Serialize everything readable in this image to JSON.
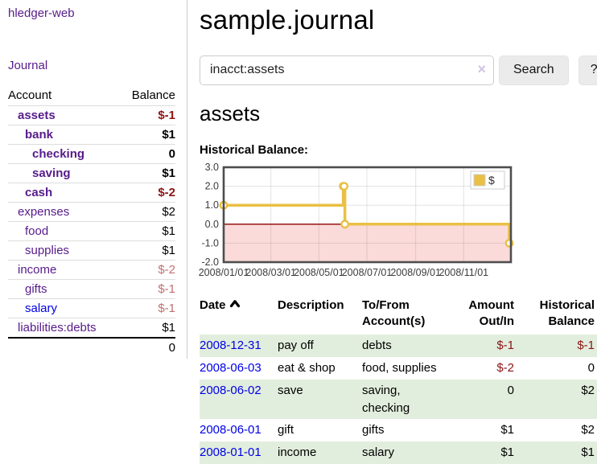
{
  "app": {
    "brand": "hledger-web"
  },
  "sidebar": {
    "journal_link": "Journal",
    "accounts": {
      "header_account": "Account",
      "header_balance": "Balance",
      "rows": [
        {
          "name": "assets",
          "balance": "$-1",
          "indent": 0,
          "bold": true,
          "balance_style": "neg-strong"
        },
        {
          "name": "bank",
          "balance": "$1",
          "indent": 1,
          "bold": true,
          "balance_style": "pos"
        },
        {
          "name": "checking",
          "balance": "0",
          "indent": 2,
          "bold": true,
          "balance_style": "pos"
        },
        {
          "name": "saving",
          "balance": "$1",
          "indent": 2,
          "bold": true,
          "balance_style": "pos"
        },
        {
          "name": "cash",
          "balance": "$-2",
          "indent": 1,
          "bold": true,
          "balance_style": "neg-strong"
        },
        {
          "name": "expenses",
          "balance": "$2",
          "indent": 0,
          "bold": false,
          "balance_style": "pos"
        },
        {
          "name": "food",
          "balance": "$1",
          "indent": 1,
          "bold": false,
          "balance_style": "pos"
        },
        {
          "name": "supplies",
          "balance": "$1",
          "indent": 1,
          "bold": false,
          "balance_style": "pos"
        },
        {
          "name": "income",
          "balance": "$-2",
          "indent": 0,
          "bold": false,
          "balance_style": "neg-soft"
        },
        {
          "name": "gifts",
          "balance": "$-1",
          "indent": 1,
          "bold": false,
          "balance_style": "neg-soft"
        },
        {
          "name": "salary",
          "balance": "$-1",
          "indent": 1,
          "bold": false,
          "balance_style": "neg-soft",
          "link_color": "blue"
        },
        {
          "name": "liabilities:debts",
          "balance": "$1",
          "indent": 0,
          "bold": false,
          "balance_style": "pos"
        }
      ],
      "total": "0"
    }
  },
  "main": {
    "title": "sample.journal",
    "search": {
      "value": "inacct:assets",
      "clear_label": "×",
      "button_label": "Search",
      "help_label": "?"
    },
    "section_title": "assets",
    "chart_label": "Historical Balance:"
  },
  "chart_data": {
    "type": "line",
    "title": "Historical Balance",
    "step": true,
    "series": [
      {
        "name": "$",
        "color": "#e9c044",
        "points": [
          [
            "2008-01-01",
            1
          ],
          [
            "2008-06-01",
            2
          ],
          [
            "2008-06-02",
            2
          ],
          [
            "2008-06-03",
            0
          ],
          [
            "2008-12-31",
            -1
          ]
        ]
      }
    ],
    "ylim": [
      -2,
      3
    ],
    "yticks": [
      "3.0",
      "2.0",
      "1.0",
      "0.0",
      "-1.0",
      "-2.0"
    ],
    "xticks": [
      "2008/01/01",
      "2008/03/01",
      "2008/05/01",
      "2008/07/01",
      "2008/09/01",
      "2008/11/01"
    ],
    "legend": {
      "label": "$",
      "position": "top-right"
    },
    "grid": true,
    "negative_fill": "#fbdada",
    "zero_line_color": "#8b0000",
    "border_color": "#4d4d4d"
  },
  "register": {
    "headers": {
      "date": "Date",
      "description": "Description",
      "accounts": "To/From Account(s)",
      "amount": "Amount Out/In",
      "balance": "Historical Balance"
    },
    "sort_icon": "caret-up",
    "rows": [
      {
        "date": "2008-12-31",
        "description": "pay off",
        "accounts": "debts",
        "amount": "$-1",
        "balance": "$-1",
        "amount_neg": true,
        "balance_neg": true
      },
      {
        "date": "2008-06-03",
        "description": "eat & shop",
        "accounts": "food, supplies",
        "amount": "$-2",
        "balance": "0",
        "amount_neg": true,
        "balance_neg": false
      },
      {
        "date": "2008-06-02",
        "description": "save",
        "accounts": "saving, checking",
        "amount": "0",
        "balance": "$2",
        "amount_neg": false,
        "balance_neg": false
      },
      {
        "date": "2008-06-01",
        "description": "gift",
        "accounts": "gifts",
        "amount": "$1",
        "balance": "$2",
        "amount_neg": false,
        "balance_neg": false
      },
      {
        "date": "2008-01-01",
        "description": "income",
        "accounts": "salary",
        "amount": "$1",
        "balance": "$1",
        "amount_neg": false,
        "balance_neg": false
      }
    ]
  }
}
